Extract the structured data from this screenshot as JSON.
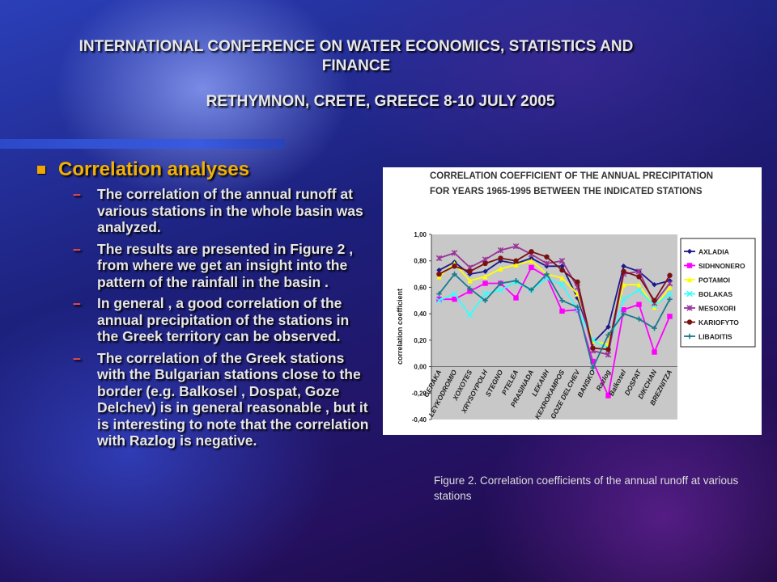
{
  "slide": {
    "title_line1": "INTERNATIONAL CONFERENCE ON WATER ECONOMICS, STATISTICS AND",
    "title_line2": "FINANCE",
    "title_line3": "RETHYMNON, CRETE, GREECE 8-10 JULY 2005",
    "bullet_heading": "Correlation analyses",
    "sub_bullets": [
      "The correlation of the annual runoff at various stations in the whole basin was analyzed.",
      "The results are presented in Figure 2 , from where we get an insight into the pattern of the rainfall in the basin .",
      "In general , a good correlation of the annual precipitation of the stations in the Greek territory can be observed.",
      "The correlation of the Greek stations with the Bulgarian stations close to the border (e.g. Balkosel , Dospat, Goze Delchev) is in general reasonable , but it is interesting to note that the correlation with Razlog is negative."
    ],
    "dash_symbol": "–",
    "caption": "Figure 2. Correlation coefficients of the annual runoff at various stations"
  },
  "chart_data": {
    "type": "line",
    "title": "CORRELATION COEFFICIENT OF THE ANNUAL PRECIPITATION FOR YEARS 1965-1995 BETWEEN THE INDICATED STATIONS",
    "title_line1": "CORRELATION COEFFICIENT OF THE ANNUAL  PRECIPITATION",
    "title_line2": "FOR YEARS 1965-1995   BETWEEN THE  INDICATED  STATIONS",
    "ylabel": "correlation  coefficient",
    "xlabel": "",
    "ylim": [
      -0.4,
      1.0
    ],
    "yticks": [
      "1,00",
      "0,80",
      "0,60",
      "0,40",
      "0,20",
      "0,00",
      "-0,20",
      "-0,40"
    ],
    "ytick_values": [
      1.0,
      0.8,
      0.6,
      0.4,
      0.2,
      0.0,
      -0.2,
      -0.4
    ],
    "categories": [
      "GERAKA",
      "LEYKODROMIO",
      "XOXOTES",
      "XRYSOYPOLH",
      "STEGNO",
      "PTELEA",
      "PRASINADA",
      "LEKANH",
      "KEXROKAMPOS",
      "GOZE DELCHEV",
      "BANSKO",
      "Razlog",
      "Balkosel",
      "DOSPAT",
      "DIKCHAN",
      "BREZNITZA"
    ],
    "legend_position": "right",
    "plot_background": "#c8c8c8",
    "series": [
      {
        "name": "AXLADIA",
        "color": "#1a1a8c",
        "marker": "diamond",
        "values": [
          0.73,
          0.79,
          0.7,
          0.72,
          0.8,
          0.78,
          0.82,
          0.76,
          0.76,
          0.52,
          0.18,
          0.3,
          0.76,
          0.72,
          0.62,
          0.65
        ]
      },
      {
        "name": "SIDHNONERO",
        "color": "#ff00ff",
        "marker": "square",
        "values": [
          0.51,
          0.51,
          0.57,
          0.63,
          0.63,
          0.52,
          0.75,
          0.68,
          0.42,
          0.43,
          0.04,
          -0.22,
          0.43,
          0.47,
          0.11,
          0.38
        ]
      },
      {
        "name": "POTAMOI",
        "color": "#ffff00",
        "marker": "triangle",
        "values": [
          0.68,
          0.78,
          0.65,
          0.68,
          0.74,
          0.77,
          0.8,
          0.7,
          0.67,
          0.55,
          0.19,
          0.17,
          0.62,
          0.62,
          0.45,
          0.6
        ]
      },
      {
        "name": "BOLAKAS",
        "color": "#33ffff",
        "marker": "x",
        "values": [
          0.5,
          0.55,
          0.39,
          0.55,
          0.58,
          0.64,
          0.58,
          0.67,
          0.62,
          0.43,
          0.2,
          0.14,
          0.51,
          0.58,
          0.46,
          0.55
        ]
      },
      {
        "name": "MESOXORI",
        "color": "#993399",
        "marker": "asterisk",
        "values": [
          0.82,
          0.86,
          0.75,
          0.81,
          0.88,
          0.91,
          0.85,
          0.78,
          0.8,
          0.6,
          0.12,
          0.09,
          0.7,
          0.72,
          0.48,
          0.63
        ]
      },
      {
        "name": "KARIOFYTO",
        "color": "#7a1010",
        "marker": "circle",
        "values": [
          0.7,
          0.76,
          0.72,
          0.78,
          0.82,
          0.8,
          0.87,
          0.83,
          0.73,
          0.64,
          0.14,
          0.13,
          0.72,
          0.68,
          0.5,
          0.69
        ]
      },
      {
        "name": "LIBADITIS",
        "color": "#1a7a8c",
        "marker": "plus",
        "values": [
          0.55,
          0.7,
          0.59,
          0.5,
          0.63,
          0.65,
          0.58,
          0.7,
          0.5,
          0.45,
          -0.01,
          0.24,
          0.4,
          0.36,
          0.29,
          0.51
        ]
      }
    ]
  }
}
